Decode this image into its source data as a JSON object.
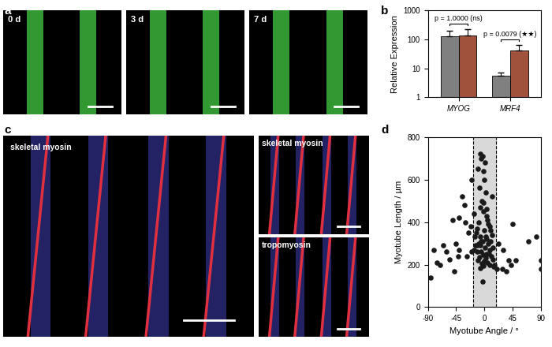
{
  "image_panels": [
    {
      "panel": "a",
      "captions": [
        "0 d",
        "3 d",
        "7 d"
      ]
    },
    {
      "panel": "c",
      "captions": [
        "skeletal myosin",
        "skeletal myosin",
        "tropomyosin"
      ]
    }
  ],
  "chart_data": [
    {
      "panel": "b",
      "type": "bar",
      "ylabel": "Relative Expression",
      "categories": [
        "MYOG",
        "MRF4"
      ],
      "series": [
        {
          "color": "#808080",
          "values": [
            130,
            5.5
          ],
          "errors": [
            70,
            1.5
          ]
        },
        {
          "color": "#a0523d",
          "values": [
            140,
            42
          ],
          "errors": [
            80,
            20
          ]
        }
      ],
      "log": "y",
      "ylim": [
        1,
        1000
      ],
      "yticks": [
        1,
        10,
        100,
        1000
      ],
      "annotations": [
        {
          "category": "MYOG",
          "text": "p = 1.0000 (ns)"
        },
        {
          "category": "MRF4",
          "text": "p = 0.0079 (★★)"
        }
      ]
    },
    {
      "panel": "d",
      "type": "scatter",
      "xlabel": "Myotube Angle / °",
      "ylabel": "Myotube Length / µm",
      "color": "#1a1a1a",
      "x": [
        -85,
        -80,
        -75,
        -70,
        -65,
        -60,
        -55,
        -50,
        -48,
        -45,
        -42,
        -40,
        -40,
        -35,
        -32,
        -30,
        -28,
        -25,
        -22,
        -20,
        -20,
        20,
        22,
        28,
        30,
        35,
        38,
        42,
        45,
        50,
        70,
        82,
        90,
        90,
        -15,
        -12,
        -10,
        -8,
        -6,
        -5,
        -3,
        -2,
        0,
        2,
        -4,
        -7,
        -1,
        3,
        5,
        -9,
        8,
        -11,
        10,
        -13,
        12,
        -6,
        4,
        -3,
        6,
        -14,
        1,
        9,
        -5,
        7,
        -2,
        11,
        -8,
        2,
        13,
        -10,
        0,
        5,
        -4,
        8,
        -1,
        15,
        -7,
        3,
        -12,
        14,
        -16,
        16,
        -3,
        0,
        6,
        -9,
        10,
        -6,
        2,
        -17,
        4,
        12,
        -1,
        1,
        -5
      ],
      "values": [
        140,
        270,
        210,
        200,
        290,
        260,
        225,
        410,
        170,
        300,
        240,
        270,
        420,
        520,
        480,
        400,
        240,
        350,
        380,
        260,
        600,
        180,
        300,
        180,
        270,
        170,
        220,
        200,
        390,
        220,
        310,
        330,
        180,
        220,
        330,
        290,
        650,
        560,
        720,
        700,
        710,
        640,
        600,
        540,
        500,
        470,
        450,
        430,
        410,
        400,
        380,
        370,
        360,
        350,
        340,
        330,
        320,
        310,
        300,
        290,
        280,
        270,
        260,
        250,
        245,
        240,
        235,
        230,
        225,
        220,
        215,
        210,
        205,
        200,
        195,
        190,
        185,
        250,
        260,
        280,
        270,
        200,
        120,
        360,
        390,
        300,
        310,
        290,
        330,
        440,
        460,
        520,
        490,
        680,
        310
      ],
      "xlim": [
        -90,
        90
      ],
      "xticks": [
        -90,
        -45,
        0,
        45,
        90
      ],
      "ylim": [
        0,
        800
      ],
      "yticks": [
        0,
        200,
        400,
        600,
        800
      ],
      "shaded_range": [
        -18,
        18
      ]
    }
  ]
}
